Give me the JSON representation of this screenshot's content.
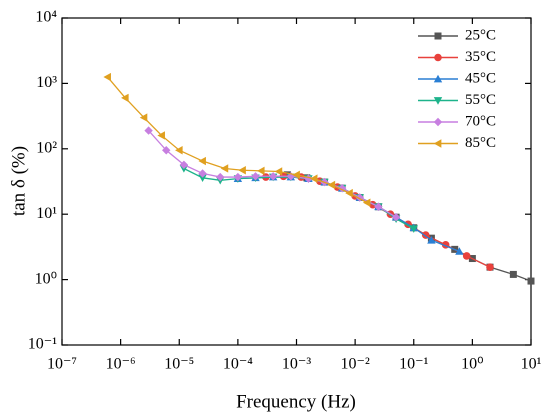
{
  "chart_data": {
    "type": "line",
    "xlabel": "Frequency (Hz)",
    "ylabel": "tan δ (%)",
    "xscale": "log",
    "yscale": "log",
    "xlim": [
      1e-07,
      10
    ],
    "ylim": [
      0.1,
      10000
    ],
    "xticks": [
      {
        "value": 1e-07,
        "label": "10⁻⁷"
      },
      {
        "value": 1e-06,
        "label": "10⁻⁶"
      },
      {
        "value": 1e-05,
        "label": "10⁻⁵"
      },
      {
        "value": 0.0001,
        "label": "10⁻⁴"
      },
      {
        "value": 0.001,
        "label": "10⁻³"
      },
      {
        "value": 0.01,
        "label": "10⁻²"
      },
      {
        "value": 0.1,
        "label": "10⁻¹"
      },
      {
        "value": 1,
        "label": "10⁰"
      },
      {
        "value": 10,
        "label": "10¹"
      }
    ],
    "yticks": [
      {
        "value": 0.1,
        "label": "10⁻¹"
      },
      {
        "value": 1,
        "label": "10⁰"
      },
      {
        "value": 10,
        "label": "10¹"
      },
      {
        "value": 100,
        "label": "10²"
      },
      {
        "value": 1000,
        "label": "10³"
      },
      {
        "value": 10000,
        "label": "10⁴"
      }
    ],
    "legend": "upper right",
    "series": [
      {
        "name": "25°C",
        "color": "#555555",
        "marker": "square",
        "x": [
          0.0007,
          0.0015,
          0.003,
          0.006,
          0.012,
          0.025,
          0.05,
          0.1,
          0.2,
          0.5,
          1,
          2,
          5,
          10
        ],
        "values": [
          40,
          36,
          31,
          25,
          18,
          13,
          9,
          6.2,
          4.3,
          2.9,
          2.1,
          1.55,
          1.2,
          0.95
        ]
      },
      {
        "name": "35°C",
        "color": "#e8413c",
        "marker": "circle",
        "x": [
          0.0003,
          0.0006,
          0.0012,
          0.0025,
          0.005,
          0.01,
          0.02,
          0.04,
          0.08,
          0.16,
          0.35,
          0.8,
          2
        ],
        "values": [
          37,
          38,
          37,
          32,
          26,
          19,
          14,
          10,
          7,
          4.8,
          3.4,
          2.3,
          1.55
        ]
      },
      {
        "name": "45°C",
        "color": "#2a7fd4",
        "marker": "triangle-up",
        "x": [
          0.0001,
          0.0002,
          0.0004,
          0.0008,
          0.0016,
          0.003,
          0.006,
          0.012,
          0.025,
          0.05,
          0.1,
          0.2,
          0.6
        ],
        "values": [
          35,
          36,
          37,
          37,
          35,
          31,
          25,
          18,
          13,
          9,
          6.2,
          4,
          2.7
        ]
      },
      {
        "name": "55°C",
        "color": "#1db38b",
        "marker": "triangle-down",
        "x": [
          1.2e-05,
          2.5e-05,
          5e-05,
          0.0001,
          0.0002,
          0.0004,
          0.0008,
          0.0016,
          0.003,
          0.006,
          0.012,
          0.025,
          0.05,
          0.1
        ],
        "values": [
          50,
          36,
          33,
          35,
          36,
          37,
          37,
          35,
          31,
          25,
          18,
          13,
          8.5,
          6
        ]
      },
      {
        "name": "70°C",
        "color": "#c77fe0",
        "marker": "diamond",
        "x": [
          3e-06,
          6e-06,
          1.2e-05,
          2.5e-05,
          5e-05,
          0.0001,
          0.0002,
          0.0004,
          0.0008,
          0.0016,
          0.003,
          0.006,
          0.012,
          0.025,
          0.05
        ],
        "values": [
          190,
          95,
          57,
          42,
          37,
          37,
          38,
          38,
          38,
          35,
          31,
          25,
          18,
          13,
          9
        ]
      },
      {
        "name": "85°C",
        "color": "#e0a020",
        "marker": "triangle-left",
        "x": [
          6e-07,
          1.2e-06,
          2.5e-06,
          5e-06,
          1e-05,
          2.5e-05,
          6e-05,
          0.00012,
          0.00025,
          0.0005,
          0.001,
          0.002,
          0.004,
          0.008,
          0.016
        ],
        "values": [
          1250,
          600,
          300,
          160,
          95,
          65,
          50,
          47,
          46,
          45,
          40,
          35,
          28,
          21,
          15
        ]
      }
    ]
  }
}
